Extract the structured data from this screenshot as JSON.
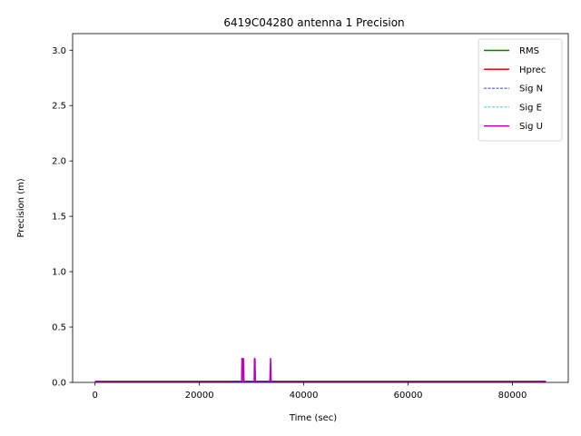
{
  "chart_data": {
    "type": "line",
    "title": "6419C04280 antenna 1 Precision",
    "xlabel": "Time (sec)",
    "ylabel": "Precision (m)",
    "xlim": [
      -4300,
      90700
    ],
    "ylim": [
      0,
      3.15
    ],
    "xticks": [
      0,
      20000,
      40000,
      60000,
      80000
    ],
    "xtick_labels": [
      "0",
      "20000",
      "40000",
      "60000",
      "80000"
    ],
    "yticks": [
      0.0,
      0.5,
      1.0,
      1.5,
      2.0,
      2.5,
      3.0
    ],
    "ytick_labels": [
      "0.0",
      "0.5",
      "1.0",
      "1.5",
      "2.0",
      "2.5",
      "3.0"
    ],
    "grid": false,
    "legend_position": "top-right",
    "series": [
      {
        "name": "RMS",
        "color": "#008000",
        "style": "solid",
        "x": [
          0,
          86400
        ],
        "y": [
          0.005,
          0.005
        ]
      },
      {
        "name": "Hprec",
        "color": "#ff0000",
        "style": "solid",
        "x": [
          0,
          86400
        ],
        "y": [
          0.006,
          0.006
        ]
      },
      {
        "name": "Sig N",
        "color": "#0000bf",
        "style": "dashed",
        "x": [
          0,
          86400
        ],
        "y": [
          0.004,
          0.004
        ]
      },
      {
        "name": "Sig E",
        "color": "#00bfbf",
        "style": "dashed",
        "x": [
          0,
          86400
        ],
        "y": [
          0.004,
          0.004
        ]
      },
      {
        "name": "Sig U",
        "color": "#bf00bf",
        "style": "solid",
        "x": [
          0,
          28100,
          28150,
          28250,
          28350,
          28450,
          28550,
          30500,
          30550,
          30650,
          30750,
          31600,
          33500,
          33650,
          33750,
          33850,
          86400
        ],
        "y": [
          0.01,
          0.01,
          0.22,
          0.01,
          0.22,
          0.21,
          0.01,
          0.01,
          0.22,
          0.21,
          0.01,
          0.01,
          0.01,
          0.22,
          0.01,
          0.01,
          0.01
        ]
      }
    ]
  }
}
